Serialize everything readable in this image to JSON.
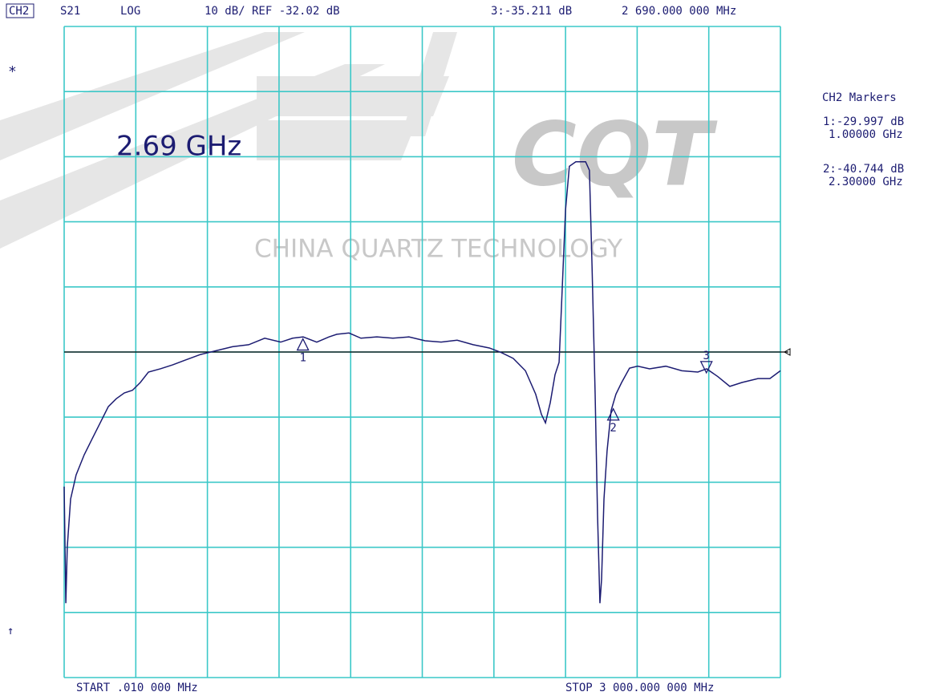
{
  "chart_data": {
    "type": "line",
    "channel": "CH2",
    "format": "LOG",
    "scale_ref": "10 dB/ REF -32.02 dB",
    "active_readout": [
      "3:-35.211 dB",
      "2 690.000 000 MHz"
    ],
    "status_symbol": "*",
    "bottom_symbol": "↑",
    "annotation": "2.69 GHz",
    "start": "START .010 000 MHz",
    "stop": "STOP 3 000.000 000 MHz",
    "marker_panel": {
      "title": "CH2 Markers",
      "entries": [
        [
          "1:-29.997 dB",
          "1.00000 GHz"
        ],
        [
          "2:-40.744 dB",
          "2.30000 GHz"
        ]
      ]
    },
    "watermark": {
      "logo": "CQT",
      "text": "CHINA QUARTZ TECHNOLOGY"
    },
    "xlim": [
      0.01,
      3000
    ],
    "ylim": [
      -82.02,
      17.98
    ],
    "xticks": [
      0.01,
      300,
      600,
      900,
      1200,
      1500,
      1800,
      2100,
      2400,
      2700,
      3000
    ],
    "yticks": [
      -82.02,
      -72.02,
      -62.02,
      -52.02,
      -42.02,
      -32.02,
      -22.02,
      -12.02,
      -2.02,
      7.98,
      17.98
    ],
    "grid": true,
    "grid_color": "#3cc8c8",
    "ref_level": -32.02,
    "ref_color": "#000000",
    "x": [
      0.01,
      7,
      13,
      27,
      50,
      84,
      118,
      151,
      185,
      218,
      252,
      286,
      319,
      353,
      403,
      454,
      504,
      571,
      638,
      705,
      773,
      840,
      907,
      957,
      1001,
      1058,
      1109,
      1142,
      1193,
      1243,
      1310,
      1377,
      1444,
      1512,
      1579,
      1646,
      1713,
      1781,
      1831,
      1881,
      1932,
      1975,
      1999,
      2016,
      2036,
      2056,
      2073,
      2083,
      2100,
      2116,
      2143,
      2184,
      2200,
      2211,
      2224,
      2234,
      2244,
      2251,
      2261,
      2274,
      2291,
      2311,
      2335,
      2368,
      2402,
      2452,
      2520,
      2587,
      2654,
      2691,
      2738,
      2788,
      2839,
      2906,
      2956,
      3000
    ],
    "series": [
      {
        "name": "S21",
        "color": "#1c1c72",
        "values": [
          -52.7,
          -70.6,
          -62.0,
          -54.6,
          -50.9,
          -47.8,
          -45.3,
          -42.9,
          -40.4,
          -39.2,
          -38.3,
          -37.9,
          -36.7,
          -35.1,
          -34.6,
          -34.0,
          -33.3,
          -32.4,
          -31.8,
          -31.2,
          -30.9,
          -29.9,
          -30.5,
          -29.9,
          -29.7,
          -30.5,
          -29.7,
          -29.3,
          -29.1,
          -29.9,
          -29.7,
          -29.9,
          -29.7,
          -30.3,
          -30.5,
          -30.2,
          -30.9,
          -31.4,
          -32.1,
          -33.0,
          -34.9,
          -38.5,
          -41.6,
          -42.9,
          -39.8,
          -35.5,
          -33.6,
          -25.0,
          -10.2,
          -3.5,
          -2.8,
          -2.8,
          -4.1,
          -18.8,
          -38.5,
          -57.0,
          -70.6,
          -66.9,
          -54.6,
          -47.2,
          -41.0,
          -38.5,
          -36.7,
          -34.5,
          -34.2,
          -34.6,
          -34.2,
          -34.9,
          -35.1,
          -34.6,
          -35.8,
          -37.3,
          -36.7,
          -36.1,
          -36.1,
          -34.9
        ]
      }
    ],
    "markers": [
      {
        "label": "1",
        "x": 1000,
        "y": -29.997,
        "active": false
      },
      {
        "label": "2",
        "x": 2300,
        "y": -40.744,
        "active": false
      },
      {
        "label": "3",
        "x": 2690,
        "y": -35.211,
        "active": true
      }
    ]
  }
}
